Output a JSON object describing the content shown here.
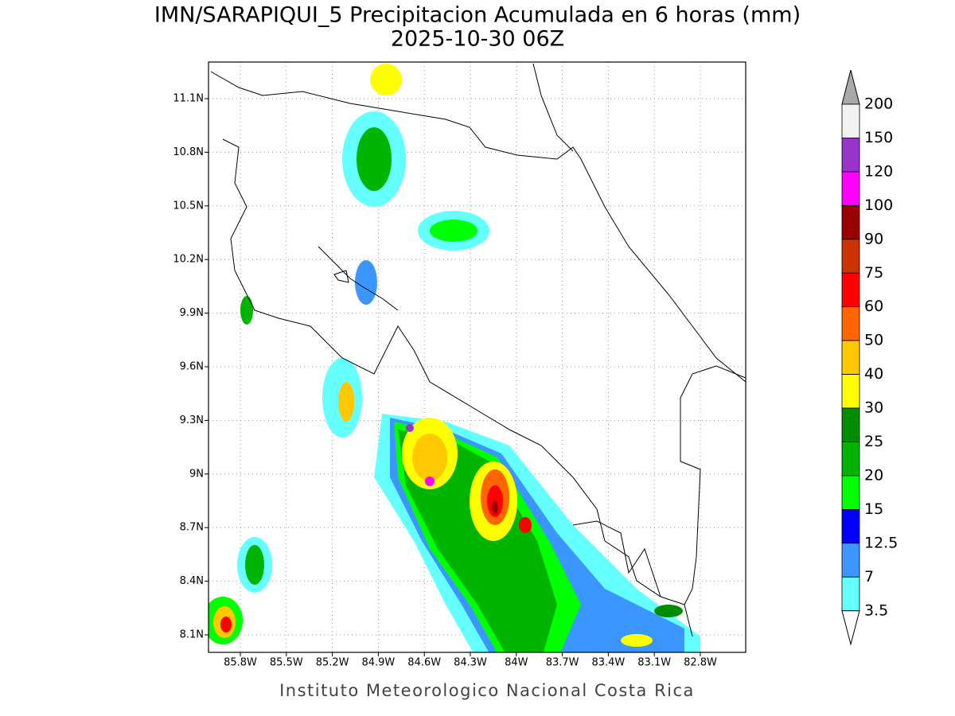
{
  "header": {
    "title": "IMN/SARAPIQUI_5 Precipitacion Acumulada en 6 horas (mm)",
    "subtitle": "2025-10-30 06Z"
  },
  "map": {
    "lat_labels": [
      "11.1N",
      "10.8N",
      "10.5N",
      "10.2N",
      "9.9N",
      "9.6N",
      "9.3N",
      "9N",
      "8.7N",
      "8.4N",
      "8.1N"
    ],
    "lon_labels": [
      "85.8W",
      "85.5W",
      "85.2W",
      "84.9W",
      "84.6W",
      "84.3W",
      "84W",
      "83.7W",
      "83.4W",
      "83.1W",
      "82.8W"
    ]
  },
  "colorbar": {
    "labels": [
      "200",
      "150",
      "120",
      "100",
      "90",
      "75",
      "60",
      "50",
      "40",
      "30",
      "25",
      "20",
      "15",
      "12.5",
      "7",
      "3.5"
    ],
    "colors": [
      "#f2f2f2",
      "#9933cc",
      "#ff00ff",
      "#990000",
      "#cc3300",
      "#ff0000",
      "#ff6600",
      "#ffc800",
      "#ffff00",
      "#008c00",
      "#00b400",
      "#00ff00",
      "#0000ff",
      "#3c96ff",
      "#66ffff"
    ],
    "over_color": "#a9a9a9",
    "under_color": "#ffffff"
  },
  "footer": "Instituto Meteorologico Nacional Costa Rica"
}
